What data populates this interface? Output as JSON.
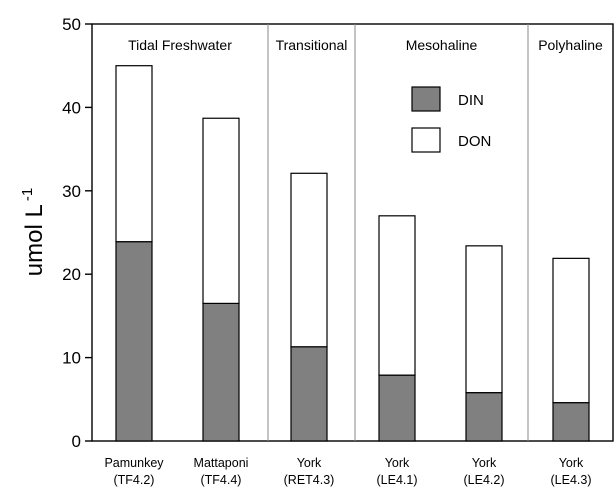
{
  "chart_data": {
    "type": "bar",
    "stacked": true,
    "categories": [
      {
        "name": "Pamunkey",
        "station": "(TF4.2)"
      },
      {
        "name": "Mattaponi",
        "station": "(TF4.4)"
      },
      {
        "name": "York",
        "station": "(RET4.3)"
      },
      {
        "name": "York",
        "station": "(LE4.1)"
      },
      {
        "name": "York",
        "station": "(LE4.2)"
      },
      {
        "name": "York",
        "station": "(LE4.3)"
      }
    ],
    "series": [
      {
        "name": "DIN",
        "color": "#808080",
        "values": [
          23.9,
          16.5,
          11.3,
          7.9,
          5.8,
          4.6
        ]
      },
      {
        "name": "DON",
        "color": "#ffffff",
        "values": [
          21.1,
          22.2,
          20.8,
          19.1,
          17.6,
          17.3
        ]
      }
    ],
    "regions": [
      {
        "label": "Tidal Freshwater",
        "categories": [
          0,
          1
        ]
      },
      {
        "label": "Transitional",
        "categories": [
          2
        ]
      },
      {
        "label": "Mesohaline",
        "categories": [
          3,
          4
        ]
      },
      {
        "label": "Polyhaline",
        "categories": [
          5
        ]
      }
    ],
    "ylabel": "umol L",
    "ylabel_superscript": "-1",
    "ylim": [
      0,
      50
    ],
    "yticks": [
      0,
      10,
      20,
      30,
      40,
      50
    ],
    "legend": {
      "placement": "top-right-inside-mesohaline",
      "entries": [
        "DIN",
        "DON"
      ]
    },
    "grid": false
  }
}
